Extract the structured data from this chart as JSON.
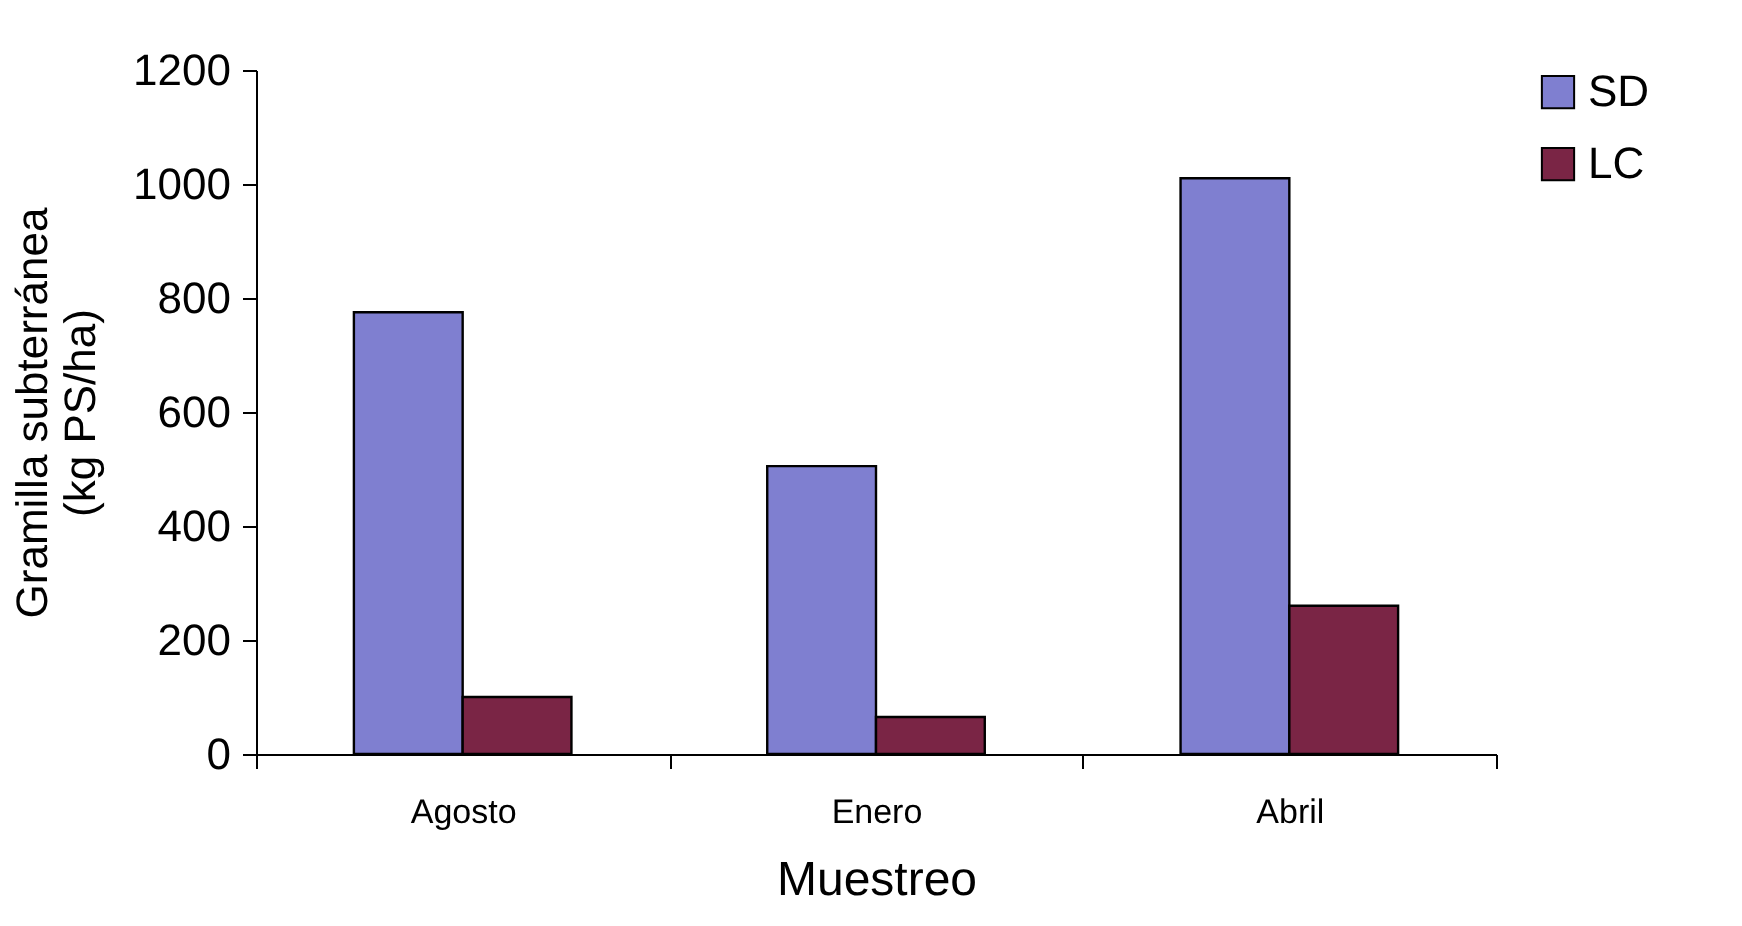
{
  "chart_data": {
    "type": "bar",
    "xlabel": "Muestreo",
    "ylabel": "Gramilla subterránea\n(kg PS/ha)",
    "categories": [
      "Agosto",
      "Enero",
      "Abril"
    ],
    "series": [
      {
        "name": "SD",
        "color": "#7f7fd0",
        "values": [
          775,
          505,
          1010
        ]
      },
      {
        "name": "LC",
        "color": "#7a2545",
        "values": [
          100,
          65,
          260
        ]
      }
    ],
    "ylim": [
      0,
      1200
    ],
    "yticks": [
      0,
      200,
      400,
      600,
      800,
      1000,
      1200
    ],
    "grid": false,
    "legend": "right"
  }
}
